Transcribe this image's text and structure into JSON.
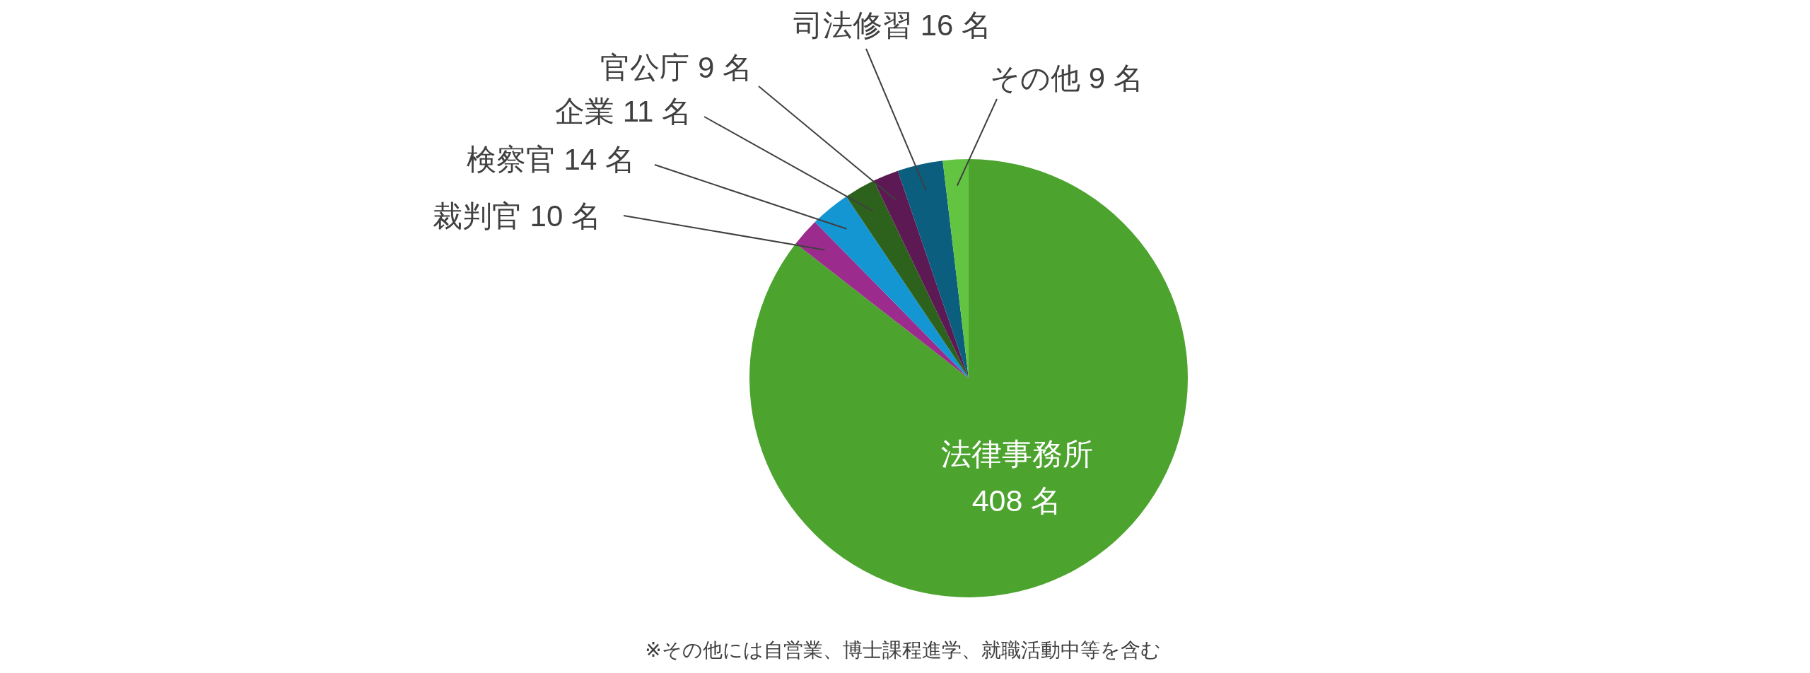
{
  "chart_data": {
    "type": "pie",
    "categories": [
      "法律事務所",
      "裁判官",
      "検察官",
      "企業",
      "官公庁",
      "司法修習",
      "その他"
    ],
    "values": [
      408,
      10,
      14,
      11,
      9,
      16,
      9
    ],
    "colors": [
      "#4ca32e",
      "#9c2b8e",
      "#1396d2",
      "#2d621c",
      "#5c1954",
      "#0b5e7e",
      "#63c442"
    ],
    "value_labels": [
      "408 名",
      "10 名",
      "14 名",
      "11 名",
      "9 名",
      "16 名",
      "9 名"
    ],
    "annotations": [
      "※その他には自営業、博士課程進学、就職活動中等を含む"
    ]
  }
}
